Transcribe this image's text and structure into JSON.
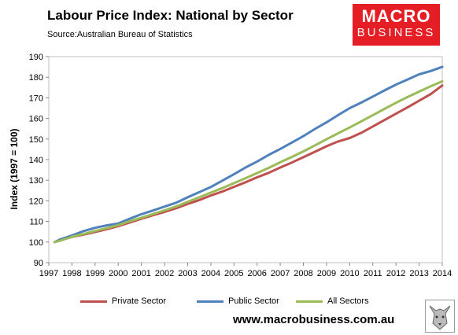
{
  "header": {
    "title": "Labour Price Index: National by Sector",
    "subtitle": "Source:Australian Bureau of Statistics"
  },
  "logo": {
    "line1": "MACRO",
    "line2": "BUSINESS",
    "color": "#e51e25"
  },
  "footer": {
    "url": "www.macrobusiness.com.au"
  },
  "chart_data": {
    "type": "line",
    "title": "Labour Price Index: National by Sector",
    "xlabel": "",
    "ylabel": "Index (1997 = 100)",
    "ylim": [
      90,
      190
    ],
    "xlim": [
      1997,
      2014
    ],
    "yticks": [
      90,
      100,
      110,
      120,
      130,
      140,
      150,
      160,
      170,
      180,
      190
    ],
    "xticks": [
      1997,
      1998,
      1999,
      2000,
      2001,
      2002,
      2003,
      2004,
      2005,
      2006,
      2007,
      2008,
      2009,
      2010,
      2011,
      2012,
      2013,
      2014
    ],
    "grid": false,
    "legend_position": "bottom",
    "x": [
      1997.25,
      1997.5,
      1998.0,
      1998.5,
      1999.0,
      1999.5,
      2000.0,
      2000.5,
      2001.0,
      2001.5,
      2002.0,
      2002.5,
      2003.0,
      2003.5,
      2004.0,
      2004.5,
      2005.0,
      2005.5,
      2006.0,
      2006.5,
      2007.0,
      2007.5,
      2008.0,
      2008.5,
      2009.0,
      2009.5,
      2010.0,
      2010.5,
      2011.0,
      2011.5,
      2012.0,
      2012.5,
      2013.0,
      2013.5,
      2014.0
    ],
    "series": [
      {
        "name": "Private Sector",
        "color": "#c0504d",
        "values": [
          100.0,
          100.8,
          102.5,
          103.6,
          104.9,
          106.2,
          107.7,
          109.5,
          111.3,
          113.0,
          114.6,
          116.4,
          118.5,
          120.4,
          122.6,
          124.5,
          126.8,
          129.0,
          131.4,
          133.6,
          136.2,
          138.6,
          141.2,
          143.8,
          146.5,
          148.8,
          150.5,
          153.0,
          156.1,
          159.2,
          162.3,
          165.4,
          168.6,
          171.8,
          176.0
        ]
      },
      {
        "name": "Public Sector",
        "color": "#4f81bd",
        "values": [
          100.0,
          101.3,
          103.2,
          105.3,
          106.9,
          108.1,
          109.0,
          111.3,
          113.5,
          115.3,
          117.2,
          119.1,
          121.7,
          124.2,
          126.7,
          129.8,
          132.9,
          136.2,
          139.1,
          142.3,
          145.2,
          148.3,
          151.4,
          154.9,
          158.1,
          161.6,
          165.0,
          167.7,
          170.6,
          173.6,
          176.4,
          178.9,
          181.4,
          183.0,
          185.0
        ]
      },
      {
        "name": "All Sectors",
        "color": "#9bbb59",
        "values": [
          100.0,
          100.7,
          102.6,
          103.9,
          105.4,
          106.7,
          108.2,
          110.1,
          111.8,
          113.6,
          115.4,
          117.3,
          119.5,
          121.7,
          124.0,
          126.2,
          128.6,
          131.0,
          133.5,
          136.0,
          138.7,
          141.3,
          144.0,
          146.9,
          149.9,
          152.8,
          155.6,
          158.6,
          161.6,
          164.6,
          167.6,
          170.4,
          173.0,
          175.6,
          178.0
        ]
      }
    ]
  }
}
